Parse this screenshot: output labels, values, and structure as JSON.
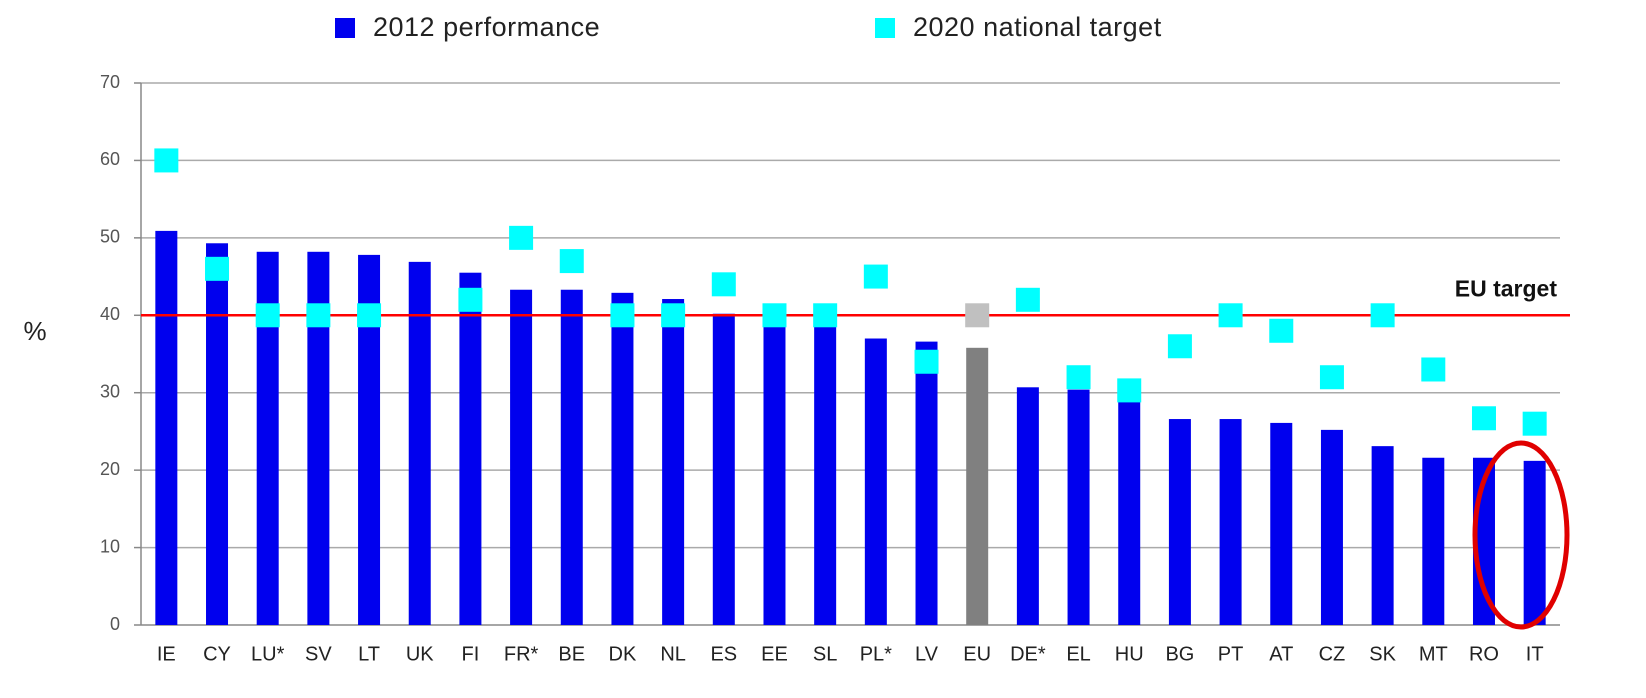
{
  "chart_data": {
    "type": "bar",
    "y_label": "%",
    "categories": [
      "IE",
      "CY",
      "LU*",
      "SV",
      "LT",
      "UK",
      "FI",
      "FR*",
      "BE",
      "DK",
      "NL",
      "ES",
      "EE",
      "SL",
      "PL*",
      "LV",
      "EU",
      "DE*",
      "EL",
      "HU",
      "BG",
      "PT",
      "AT",
      "CZ",
      "SK",
      "MT",
      "RO",
      "IT"
    ],
    "series": [
      {
        "name": "2012 performance",
        "color": "#0000ee",
        "point_colors": {
          "EU": "#808080"
        },
        "mark": "bar",
        "values": [
          50.9,
          49.3,
          48.2,
          48.2,
          47.8,
          46.9,
          45.5,
          43.3,
          43.3,
          42.9,
          42.1,
          40.2,
          41.2,
          40.5,
          37.0,
          36.6,
          35.8,
          30.7,
          30.4,
          29.9,
          26.6,
          26.6,
          26.1,
          25.2,
          23.1,
          21.6,
          21.6,
          21.2
        ]
      },
      {
        "name": "2020 national target",
        "color": "#00ffff",
        "point_colors": {
          "EU": "#c0c0c0"
        },
        "mark": "square",
        "values": [
          60,
          46,
          40,
          40,
          40,
          null,
          42,
          50,
          47,
          40,
          40,
          44,
          40,
          40,
          45,
          34,
          40,
          42,
          32,
          30.3,
          36,
          40,
          38,
          32,
          40,
          33,
          26.7,
          26
        ]
      }
    ],
    "target_line": {
      "value": 40,
      "label": "EU target",
      "color": "#ff0000"
    },
    "ylim": [
      0,
      70
    ],
    "yticks": [
      0,
      10,
      20,
      30,
      40,
      50,
      60,
      70
    ],
    "grid": true
  }
}
